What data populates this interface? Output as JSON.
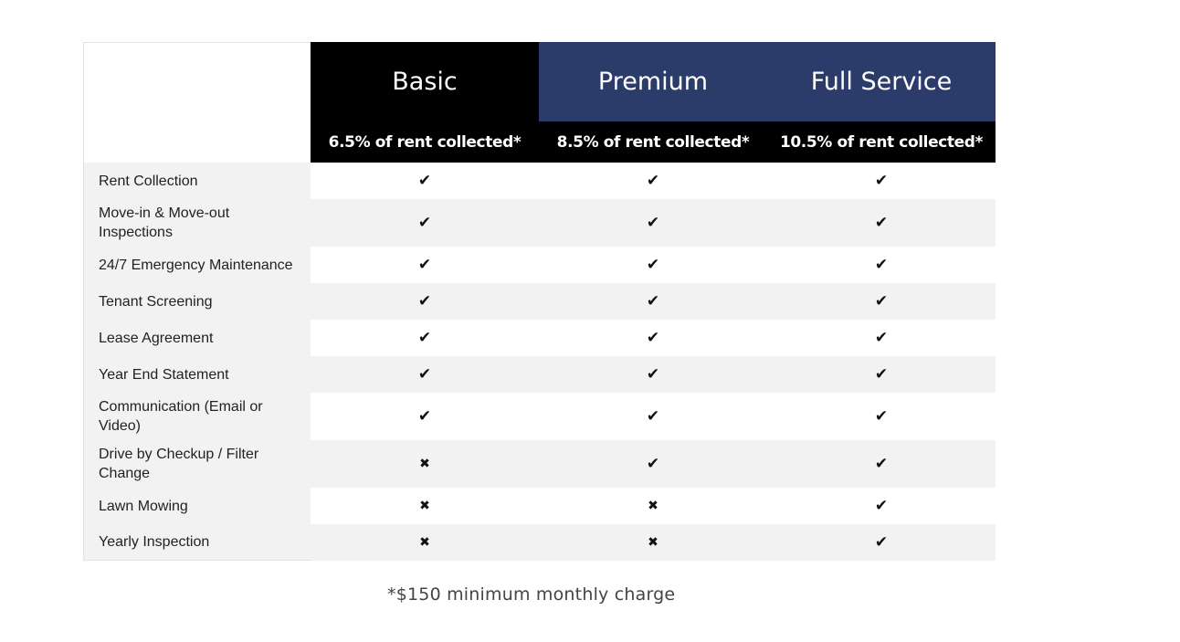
{
  "plans": [
    {
      "name": "Basic",
      "price": "6.5% of rent collected*",
      "header_color": "#000000"
    },
    {
      "name": "Premium",
      "price": "8.5% of rent collected*",
      "header_color": "#2c3c6a"
    },
    {
      "name": "Full Service",
      "price": "10.5% of rent collected*",
      "header_color": "#2c3c6a"
    }
  ],
  "icons": {
    "check": "check-icon",
    "cross": "cross-icon"
  },
  "features": [
    {
      "label": "Rent Collection",
      "values": [
        true,
        true,
        true
      ]
    },
    {
      "label": "Move-in & Move-out Inspections",
      "values": [
        true,
        true,
        true
      ]
    },
    {
      "label": "24/7 Emergency Maintenance",
      "values": [
        true,
        true,
        true
      ]
    },
    {
      "label": "Tenant Screening",
      "values": [
        true,
        true,
        true
      ]
    },
    {
      "label": "Lease Agreement",
      "values": [
        true,
        true,
        true
      ]
    },
    {
      "label": "Year End Statement",
      "values": [
        true,
        true,
        true
      ]
    },
    {
      "label": "Communication (Email or Video)",
      "values": [
        true,
        true,
        true
      ]
    },
    {
      "label": "Drive by Checkup / Filter Change",
      "values": [
        false,
        true,
        true
      ]
    },
    {
      "label": "Lawn Mowing",
      "values": [
        false,
        false,
        true
      ]
    },
    {
      "label": "Yearly Inspection",
      "values": [
        false,
        false,
        true
      ]
    }
  ],
  "footnote": "*$150 minimum monthly charge"
}
